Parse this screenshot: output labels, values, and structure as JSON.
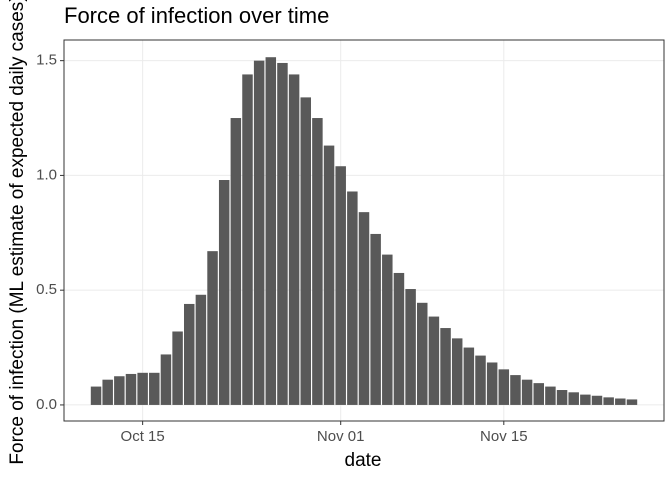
{
  "chart_data": {
    "type": "bar",
    "title": "Force of infection over time",
    "x_label": "date",
    "y_label": "Force of infection (ML estimate of expected daily cases)",
    "categories": [
      "Oct 11",
      "Oct 12",
      "Oct 13",
      "Oct 14",
      "Oct 15",
      "Oct 16",
      "Oct 17",
      "Oct 18",
      "Oct 19",
      "Oct 20",
      "Oct 21",
      "Oct 22",
      "Oct 23",
      "Oct 24",
      "Oct 25",
      "Oct 26",
      "Oct 27",
      "Oct 28",
      "Oct 29",
      "Oct 30",
      "Oct 31",
      "Nov 01",
      "Nov 02",
      "Nov 03",
      "Nov 04",
      "Nov 05",
      "Nov 06",
      "Nov 07",
      "Nov 08",
      "Nov 09",
      "Nov 10",
      "Nov 11",
      "Nov 12",
      "Nov 13",
      "Nov 14",
      "Nov 15",
      "Nov 16",
      "Nov 17",
      "Nov 18",
      "Nov 19",
      "Nov 20",
      "Nov 21",
      "Nov 22",
      "Nov 23",
      "Nov 24",
      "Nov 25",
      "Nov 26"
    ],
    "values": [
      0.08,
      0.11,
      0.125,
      0.135,
      0.14,
      0.14,
      0.22,
      0.32,
      0.44,
      0.48,
      0.67,
      0.98,
      1.25,
      1.44,
      1.5,
      1.515,
      1.49,
      1.44,
      1.34,
      1.25,
      1.13,
      1.04,
      0.93,
      0.84,
      0.745,
      0.655,
      0.575,
      0.505,
      0.445,
      0.385,
      0.335,
      0.29,
      0.25,
      0.215,
      0.185,
      0.155,
      0.13,
      0.11,
      0.095,
      0.08,
      0.065,
      0.055,
      0.045,
      0.04,
      0.033,
      0.028,
      0.024
    ],
    "color": "#595959",
    "xticks": [
      "Oct 15",
      "Nov 01",
      "Nov 15"
    ],
    "ylim": [
      -0.07,
      1.59
    ],
    "yticks": [
      {
        "value": 0,
        "label": "0.0"
      },
      0.5,
      {
        "value": 1,
        "label": "1.0"
      },
      1.5
    ],
    "grid": true
  }
}
